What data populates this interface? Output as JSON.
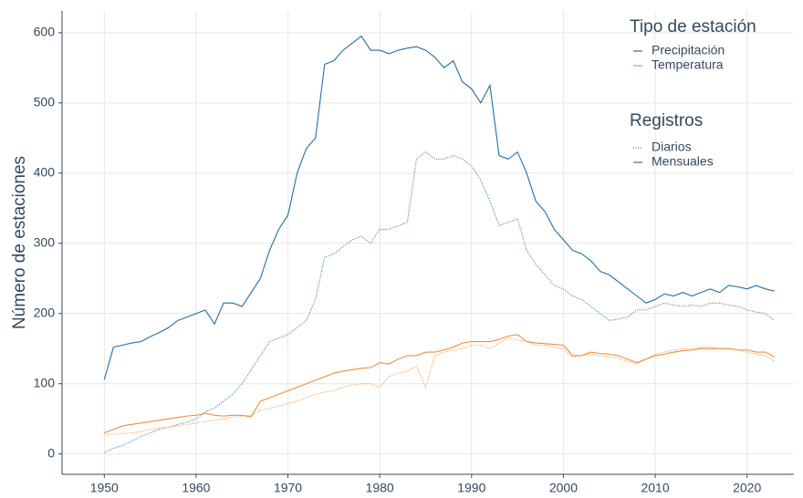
{
  "chart_data": {
    "type": "line",
    "ylabel": "Número de estaciones",
    "xlim": [
      1945.4,
      2025.1
    ],
    "xticks": [
      1950,
      1960,
      1970,
      1980,
      1990,
      2000,
      2010,
      2020
    ],
    "ylim": [
      -29,
      631
    ],
    "yticks": [
      0,
      100,
      200,
      300,
      400,
      500,
      600
    ],
    "grid": true,
    "legend_position": "top-right",
    "legend_titles": [
      "Tipo de estación",
      "Registros"
    ],
    "x": [
      1950,
      1951,
      1952,
      1953,
      1954,
      1955,
      1956,
      1957,
      1958,
      1959,
      1960,
      1961,
      1962,
      1963,
      1964,
      1965,
      1966,
      1967,
      1968,
      1969,
      1970,
      1971,
      1972,
      1973,
      1974,
      1975,
      1976,
      1977,
      1978,
      1979,
      1980,
      1981,
      1982,
      1983,
      1984,
      1985,
      1986,
      1987,
      1988,
      1989,
      1990,
      1991,
      1992,
      1993,
      1994,
      1995,
      1996,
      1997,
      1998,
      1999,
      2000,
      2001,
      2002,
      2003,
      2004,
      2005,
      2006,
      2007,
      2008,
      2009,
      2010,
      2011,
      2012,
      2013,
      2014,
      2015,
      2016,
      2017,
      2018,
      2019,
      2020,
      2021,
      2022,
      2023
    ],
    "series": [
      {
        "station_type": "Precipitación",
        "records": "Mensuales",
        "color": "#1f6fa8",
        "dash": "solid",
        "values": [
          106,
          152,
          155,
          158,
          160,
          167,
          173,
          180,
          190,
          195,
          200,
          205,
          185,
          215,
          215,
          210,
          230,
          250,
          290,
          320,
          340,
          400,
          435,
          450,
          555,
          560,
          575,
          585,
          595,
          575,
          575,
          570,
          575,
          578,
          580,
          575,
          565,
          550,
          560,
          530,
          520,
          500,
          525,
          425,
          420,
          430,
          400,
          360,
          345,
          320,
          305,
          290,
          285,
          275,
          260,
          255,
          245,
          235,
          225,
          215,
          220,
          228,
          225,
          230,
          225,
          230,
          235,
          230,
          240,
          238,
          235,
          240,
          235,
          232
        ]
      },
      {
        "station_type": "Precipitación",
        "records": "Diarios",
        "color": "#1f6fa8",
        "dash": "dotted",
        "values": [
          2,
          8,
          12,
          18,
          25,
          30,
          35,
          38,
          42,
          45,
          50,
          60,
          65,
          75,
          85,
          100,
          120,
          140,
          160,
          165,
          170,
          180,
          190,
          220,
          280,
          285,
          295,
          305,
          310,
          300,
          320,
          320,
          325,
          330,
          420,
          430,
          420,
          420,
          425,
          420,
          410,
          390,
          360,
          325,
          330,
          335,
          290,
          270,
          255,
          240,
          235,
          225,
          220,
          210,
          200,
          190,
          192,
          195,
          205,
          205,
          210,
          215,
          212,
          210,
          212,
          210,
          215,
          215,
          212,
          210,
          205,
          202,
          200,
          190
        ]
      },
      {
        "station_type": "Temperatura",
        "records": "Mensuales",
        "color": "#f28e3b",
        "dash": "solid",
        "values": [
          30,
          35,
          40,
          42,
          44,
          46,
          48,
          50,
          52,
          54,
          55,
          58,
          55,
          54,
          55,
          55,
          53,
          75,
          80,
          85,
          90,
          95,
          100,
          105,
          110,
          115,
          118,
          120,
          122,
          123,
          130,
          128,
          135,
          140,
          140,
          145,
          145,
          148,
          152,
          158,
          160,
          160,
          160,
          163,
          168,
          170,
          160,
          158,
          157,
          156,
          155,
          140,
          140,
          145,
          143,
          142,
          140,
          135,
          130,
          135,
          140,
          142,
          145,
          147,
          148,
          150,
          150,
          150,
          150,
          148,
          148,
          145,
          145,
          138
        ]
      },
      {
        "station_type": "Temperatura",
        "records": "Diarios",
        "color": "#f28e3b",
        "dash": "dotted",
        "values": [
          28,
          28,
          29,
          30,
          32,
          35,
          37,
          38,
          40,
          42,
          44,
          46,
          48,
          50,
          52,
          54,
          55,
          62,
          65,
          68,
          72,
          75,
          80,
          85,
          88,
          90,
          95,
          98,
          100,
          100,
          95,
          110,
          115,
          118,
          125,
          95,
          140,
          145,
          148,
          150,
          155,
          155,
          150,
          158,
          165,
          162,
          160,
          155,
          155,
          152,
          150,
          138,
          140,
          142,
          140,
          138,
          136,
          132,
          128,
          135,
          142,
          145,
          148,
          150,
          150,
          152,
          152,
          150,
          150,
          148,
          145,
          142,
          140,
          132
        ]
      }
    ]
  }
}
